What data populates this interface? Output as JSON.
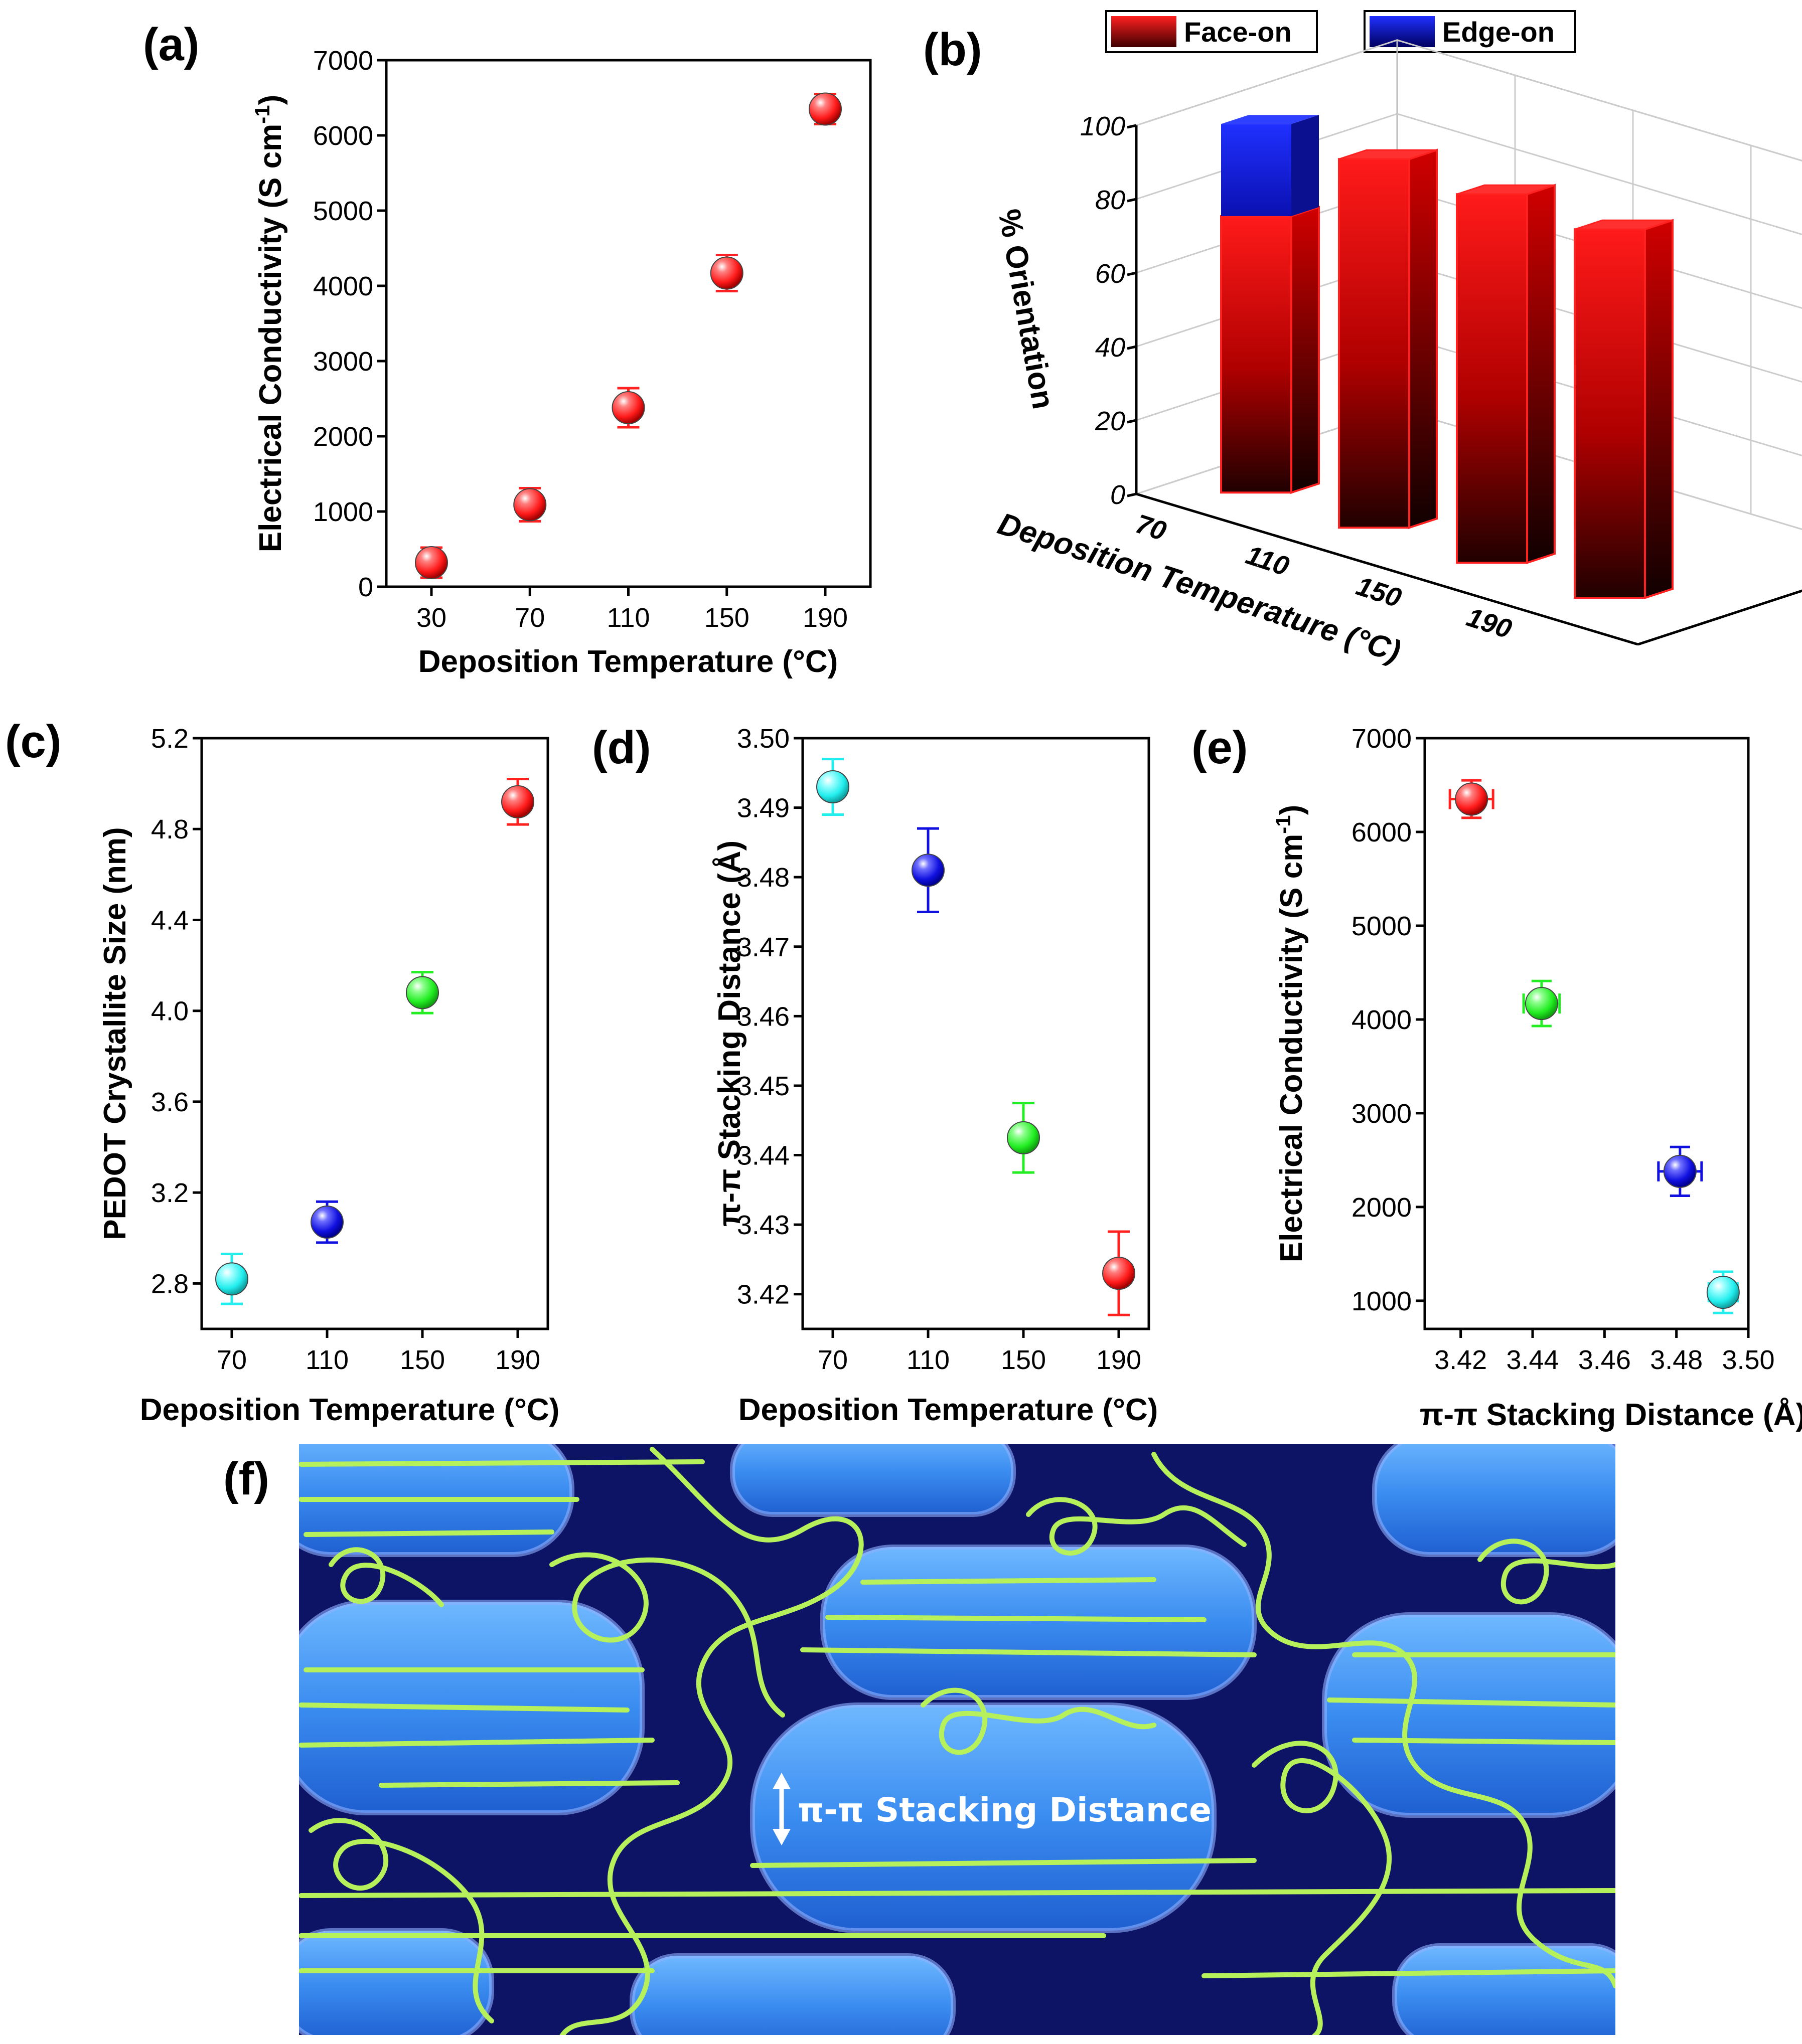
{
  "panel_labels": {
    "a": "(a)",
    "b": "(b)",
    "c": "(c)",
    "d": "(d)",
    "e": "(e)",
    "f": "(f)"
  },
  "colors": {
    "red": "#ff2020",
    "blue": "#1010e0",
    "green": "#22ee22",
    "cyan": "#22eeee",
    "edge_on": "#1020ff",
    "face_on": "#ff1a1a"
  },
  "chart_data": [
    {
      "id": "a",
      "type": "scatter",
      "title": "",
      "xlabel": "Deposition Temperature (°C)",
      "ylabel": "Electrical Conductivity (S cm-1)",
      "ylabel_main": "Electrical Conductivity (S cm",
      "ylabel_sup": "-1",
      "ylabel_close": ")",
      "x_categories": [
        "30",
        "70",
        "110",
        "150",
        "190"
      ],
      "ylim": [
        0,
        7000
      ],
      "yticks": [
        "0",
        "1000",
        "2000",
        "3000",
        "4000",
        "5000",
        "6000",
        "7000"
      ],
      "points": [
        {
          "x": "30",
          "y": 320,
          "err": 200,
          "color": "red"
        },
        {
          "x": "70",
          "y": 1090,
          "err": 220,
          "color": "red"
        },
        {
          "x": "110",
          "y": 2380,
          "err": 260,
          "color": "red"
        },
        {
          "x": "150",
          "y": 4170,
          "err": 240,
          "color": "red"
        },
        {
          "x": "190",
          "y": 6350,
          "err": 200,
          "color": "red"
        }
      ]
    },
    {
      "id": "b",
      "type": "bar",
      "xlabel": "Deposition Temperature (°C)",
      "ylabel": "% Orientation",
      "categories": [
        "70",
        "110",
        "150",
        "190"
      ],
      "ylim": [
        0,
        100
      ],
      "yticks": [
        "0",
        "20",
        "40",
        "60",
        "80",
        "100"
      ],
      "series": [
        {
          "name": "Face-on",
          "values": [
            75,
            100,
            100,
            100
          ]
        },
        {
          "name": "Edge-on",
          "values": [
            25,
            0,
            0,
            0
          ]
        }
      ]
    },
    {
      "id": "c",
      "type": "scatter",
      "xlabel": "Deposition Temperature (°C)",
      "ylabel": "PEDOT Crystallite Size (nm)",
      "x_categories": [
        "70",
        "110",
        "150",
        "190"
      ],
      "ylim": [
        2.6,
        5.2
      ],
      "yticks": [
        "2.8",
        "3.2",
        "3.6",
        "4.0",
        "4.4",
        "4.8",
        "5.2"
      ],
      "points": [
        {
          "x": "70",
          "y": 2.82,
          "err": 0.11,
          "color": "cyan"
        },
        {
          "x": "110",
          "y": 3.07,
          "err": 0.09,
          "color": "blue"
        },
        {
          "x": "150",
          "y": 4.08,
          "err": 0.09,
          "color": "green"
        },
        {
          "x": "190",
          "y": 4.92,
          "err": 0.1,
          "color": "red"
        }
      ]
    },
    {
      "id": "d",
      "type": "scatter",
      "xlabel": "Deposition Temperature (°C)",
      "ylabel": "π-π Stacking Distance (Å)",
      "x_categories": [
        "70",
        "110",
        "150",
        "190"
      ],
      "ylim": [
        3.415,
        3.5
      ],
      "yticks": [
        "3.42",
        "3.43",
        "3.44",
        "3.45",
        "3.46",
        "3.47",
        "3.48",
        "3.49",
        "3.50"
      ],
      "points": [
        {
          "x": "70",
          "y": 3.493,
          "err": 0.004,
          "color": "cyan"
        },
        {
          "x": "110",
          "y": 3.481,
          "err": 0.006,
          "color": "blue"
        },
        {
          "x": "150",
          "y": 3.4425,
          "err": 0.005,
          "color": "green"
        },
        {
          "x": "190",
          "y": 3.423,
          "err": 0.006,
          "color": "red"
        }
      ]
    },
    {
      "id": "e",
      "type": "scatter",
      "xlabel": "π-π Stacking Distance (Å)",
      "ylabel": "Electrical Conductivity (S cm-1)",
      "ylabel_main": "Electrical Conductivity (S cm",
      "ylabel_sup": "-1",
      "ylabel_close": ")",
      "xlim": [
        3.41,
        3.5
      ],
      "xticks": [
        "3.42",
        "3.44",
        "3.46",
        "3.48",
        "3.50"
      ],
      "ylim": [
        700,
        7000
      ],
      "yticks": [
        "1000",
        "2000",
        "3000",
        "4000",
        "5000",
        "6000",
        "7000"
      ],
      "points": [
        {
          "x": 3.423,
          "y": 6350,
          "xerr": 0.006,
          "yerr": 200,
          "color": "red"
        },
        {
          "x": 3.4425,
          "y": 4170,
          "xerr": 0.005,
          "yerr": 240,
          "color": "green"
        },
        {
          "x": 3.481,
          "y": 2380,
          "xerr": 0.006,
          "yerr": 260,
          "color": "blue"
        },
        {
          "x": 3.493,
          "y": 1090,
          "xerr": 0.004,
          "yerr": 220,
          "color": "cyan"
        }
      ]
    }
  ],
  "schematic": {
    "annotation": "π-π Stacking Distance"
  }
}
